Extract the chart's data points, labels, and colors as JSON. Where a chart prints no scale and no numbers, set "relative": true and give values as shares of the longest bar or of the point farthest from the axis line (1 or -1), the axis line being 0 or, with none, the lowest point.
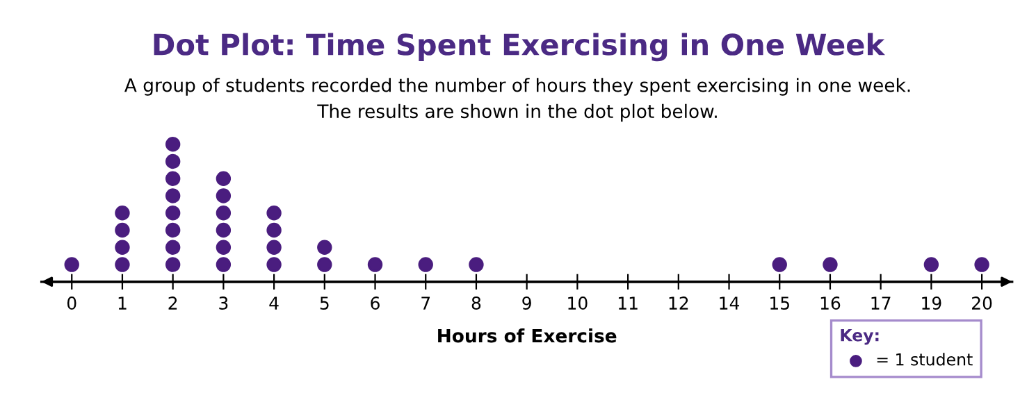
{
  "chart_data": {
    "type": "scatter",
    "title": "Dot Plot: Time Spent Exercising in One Week",
    "subtitle": "A group of students recorded the number of hours they spent exercising in one week.\nThe results are shown in the dot plot below.",
    "xlabel": "Hours of Exercise",
    "categories": [
      "0",
      "1",
      "2",
      "3",
      "4",
      "5",
      "6",
      "7",
      "8",
      "9",
      "10",
      "11",
      "12",
      "14",
      "15",
      "16",
      "17",
      "19",
      "20"
    ],
    "relative": true,
    "series": [
      {
        "name": "= 1 student",
        "color": "#4a1d7f",
        "x": [
          "0",
          "1",
          "1",
          "1",
          "1",
          "2",
          "2",
          "2",
          "2",
          "2",
          "2",
          "2",
          "2",
          "3",
          "3",
          "3",
          "3",
          "3",
          "3",
          "4",
          "4",
          "4",
          "4",
          "5",
          "5",
          "6",
          "7",
          "8",
          "15",
          "16",
          "19",
          "20"
        ],
        "values": [
          0.125,
          0.125,
          0.25,
          0.375,
          0.5,
          0.125,
          0.25,
          0.375,
          0.5,
          0.625,
          0.75,
          0.875,
          1,
          0.125,
          0.25,
          0.375,
          0.5,
          0.625,
          0.75,
          0.125,
          0.25,
          0.375,
          0.5,
          0.125,
          0.25,
          0.125,
          0.125,
          0.125,
          0.125,
          0.125,
          0.125,
          0.125
        ]
      }
    ],
    "legend": "bottom right",
    "legend_title": "Key:",
    "grid": false,
    "marker": "circle"
  }
}
